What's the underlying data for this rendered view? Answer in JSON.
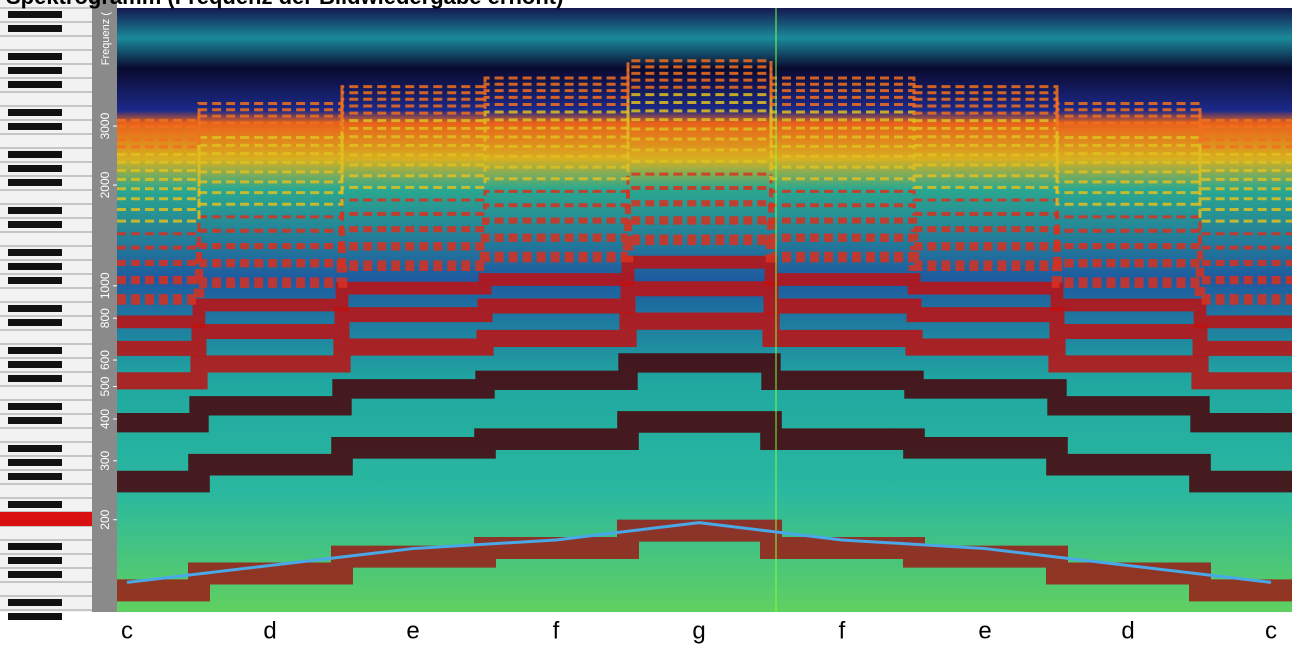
{
  "title": "Spektrogramm (Frequenz der Bildwiedergabe erhöht)",
  "chart_data": {
    "type": "line",
    "y_label": "Frequenz (",
    "categories": [
      "c",
      "d",
      "e",
      "f",
      "g",
      "f",
      "e",
      "d",
      "c"
    ],
    "series": [
      {
        "color": "#4aa8e8",
        "values": [
          130,
          146,
          164,
          174,
          196,
          174,
          164,
          146,
          130
        ]
      }
    ],
    "ylim": [
      106,
      6760
    ],
    "log_y": true,
    "yticks": [
      200,
      300,
      400,
      500,
      600,
      800,
      1000,
      2000,
      3000
    ]
  }
}
